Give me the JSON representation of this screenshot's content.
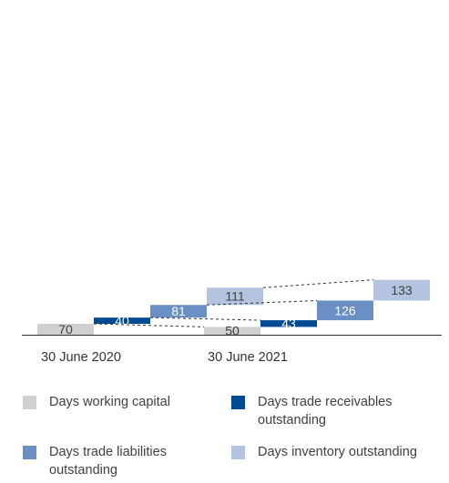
{
  "chart_data": {
    "type": "bar",
    "subtype": "waterfall",
    "groups": [
      "30 June 2020",
      "30 June 2021"
    ],
    "series": [
      {
        "name": "Days working capital",
        "color": "#d0d0d0",
        "values": [
          70,
          50
        ]
      },
      {
        "name": "Days trade receivables outstanding",
        "color": "#004a93",
        "values": [
          40,
          43
        ]
      },
      {
        "name": "Days trade liabilities outstanding",
        "color": "#6a8fc4",
        "values": [
          81,
          126
        ]
      },
      {
        "name": "Days inventory outstanding",
        "color": "#b3c3e0",
        "values": [
          111,
          133
        ]
      }
    ],
    "title": "",
    "xlabel": "",
    "ylabel": "",
    "legend": "bottom",
    "grid": false,
    "connector_lines": "dashed"
  },
  "legend": {
    "items": [
      {
        "label_lines": [
          "Days working capital"
        ],
        "color": "#d0d0d0"
      },
      {
        "label_lines": [
          "Days trade receivables",
          "outstanding"
        ],
        "color": "#004a93"
      },
      {
        "label_lines": [
          "Days trade liabilities",
          "outstanding"
        ],
        "color": "#6a8fc4"
      },
      {
        "label_lines": [
          "Days inventory outstanding"
        ],
        "color": "#b3c3e0"
      }
    ]
  }
}
